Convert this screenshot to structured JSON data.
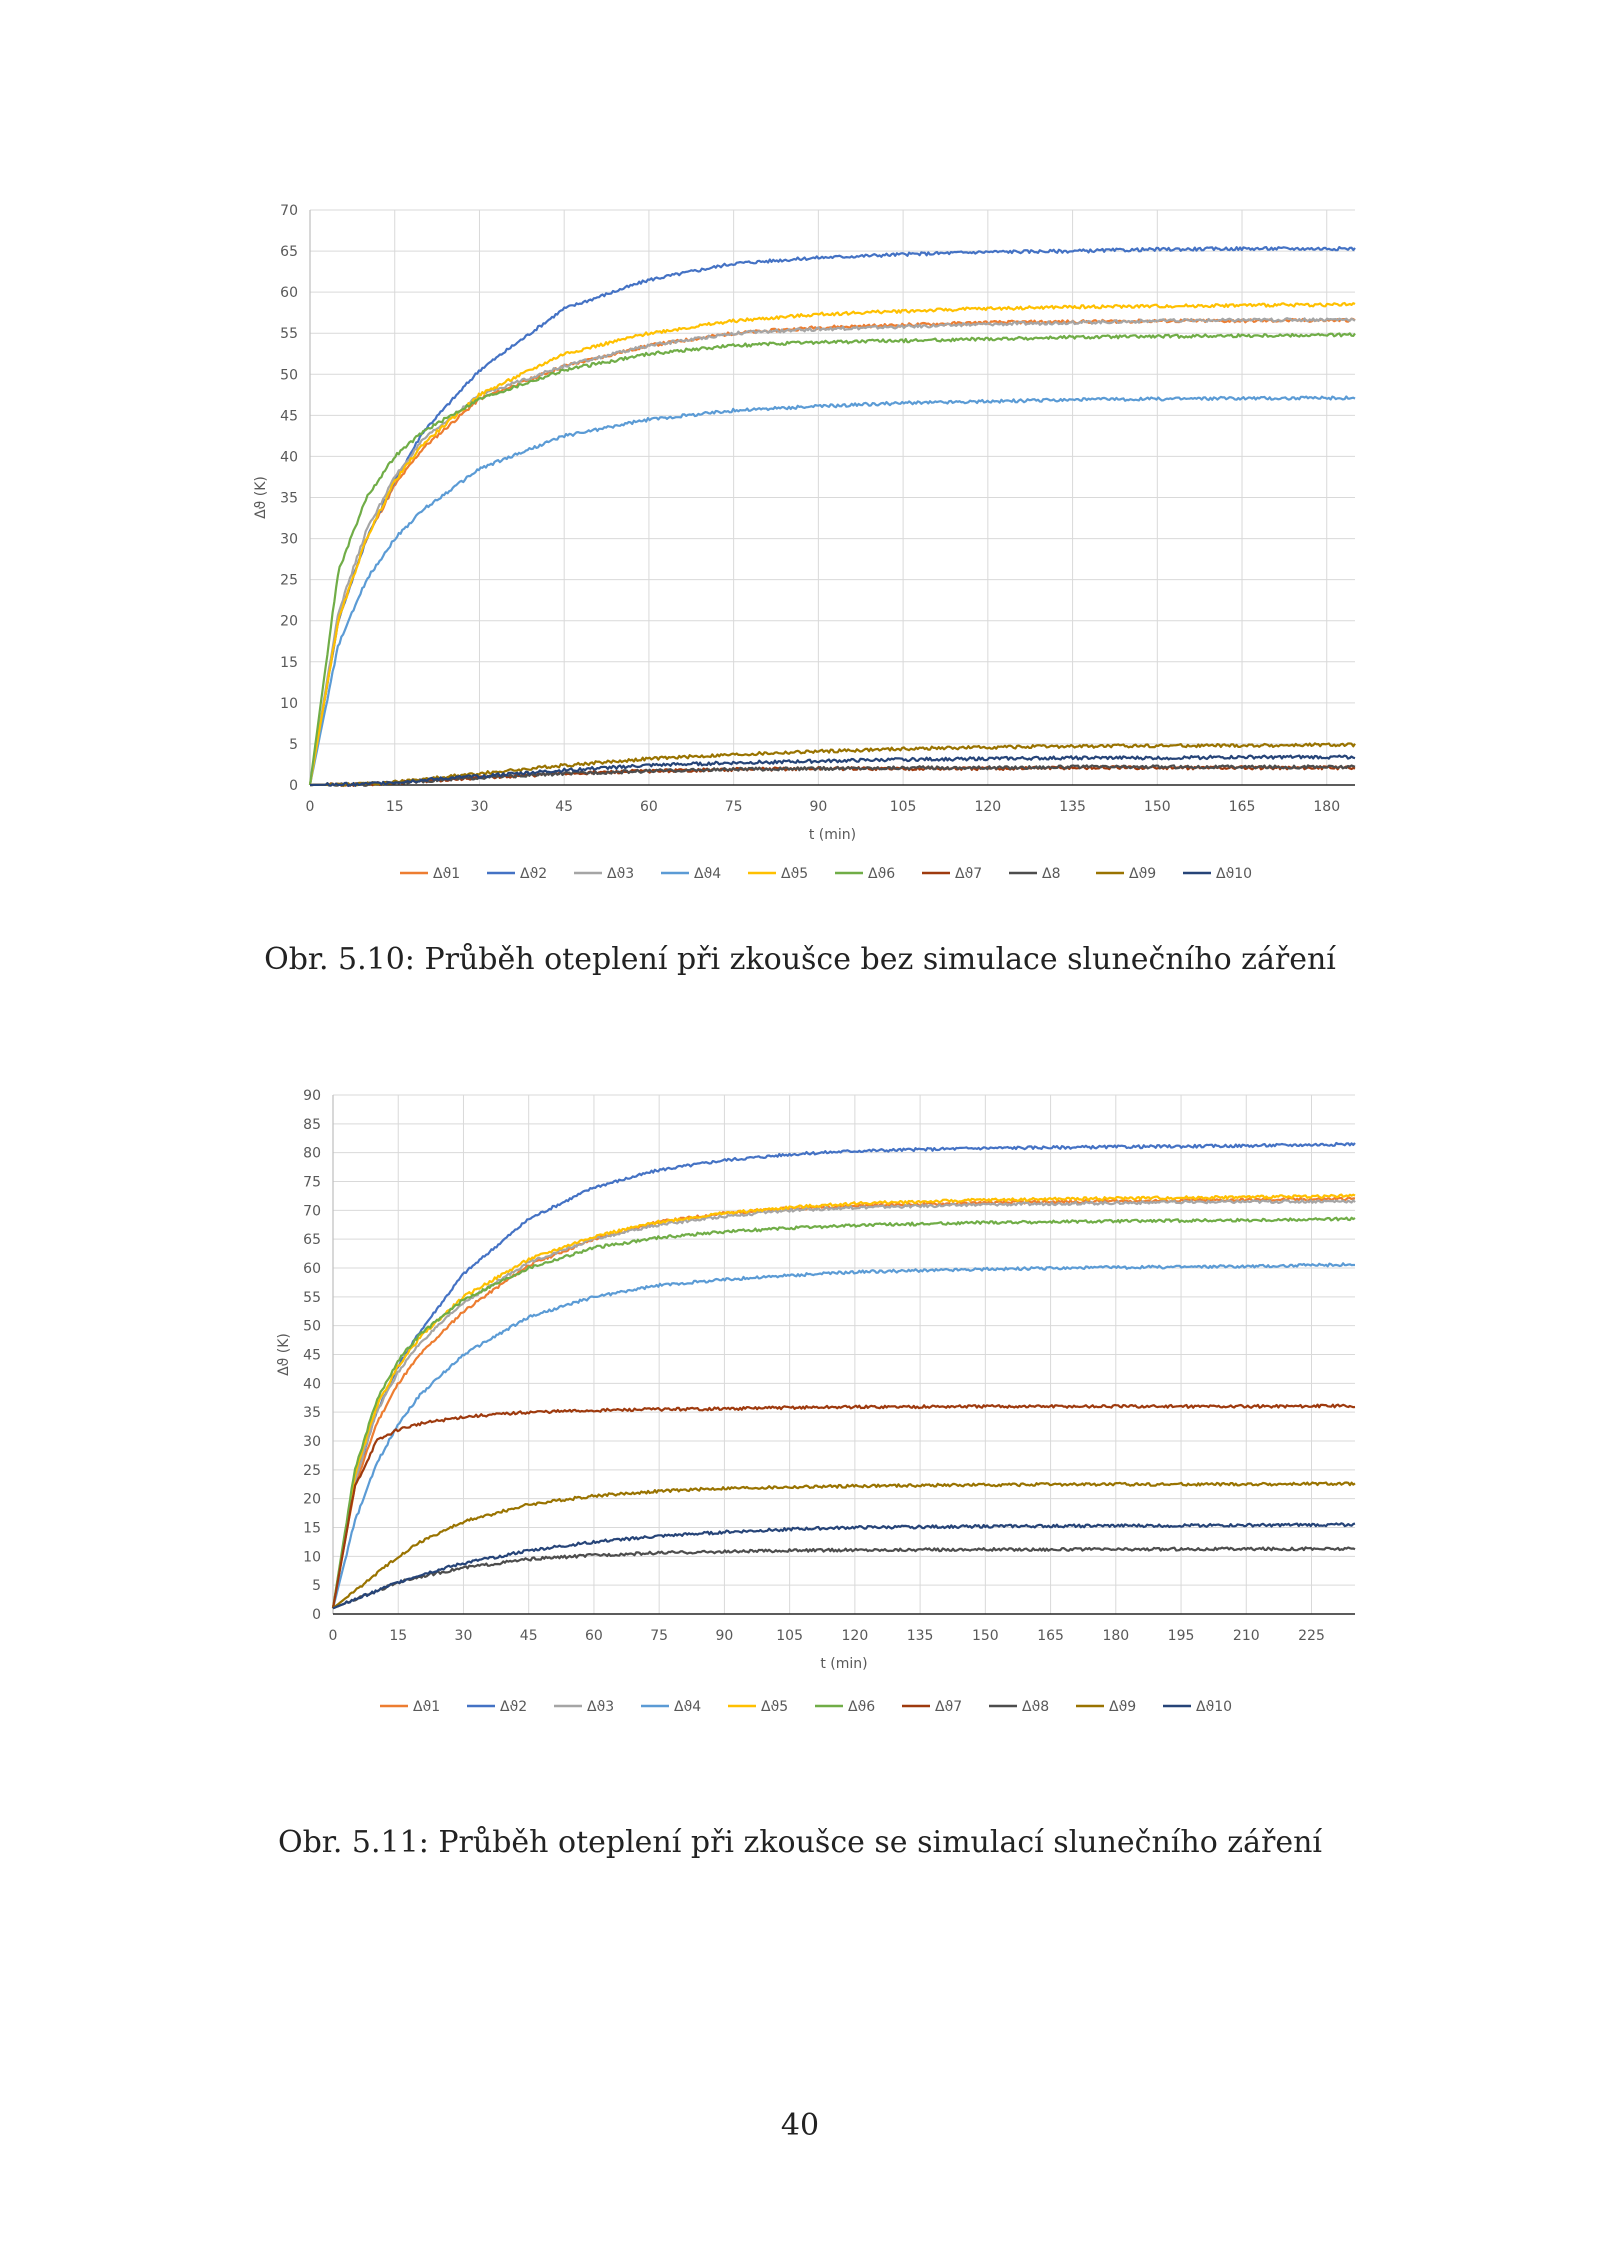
{
  "page_number": "40",
  "figures": [
    {
      "caption": "Obr. 5.10: Průběh oteplení při zkoušce bez simulace slunečního záření",
      "xlabel": "t (min)",
      "ylabel": "Δϑ (K)"
    },
    {
      "caption": "Obr. 5.11: Průběh oteplení při zkoušce se simulací slunečního záření",
      "xlabel": "t (min)",
      "ylabel": "Δϑ (K)"
    }
  ],
  "chart_data": [
    {
      "type": "line",
      "title": "",
      "xlabel": "t (min)",
      "ylabel": "Δϑ (K)",
      "xlim": [
        0,
        185
      ],
      "ylim": [
        0,
        70
      ],
      "xticks": [
        0,
        15,
        30,
        45,
        60,
        75,
        90,
        105,
        120,
        135,
        150,
        165,
        180
      ],
      "yticks": [
        0,
        5,
        10,
        15,
        20,
        25,
        30,
        35,
        40,
        45,
        50,
        55,
        60,
        65,
        70
      ],
      "grid": true,
      "legend_position": "bottom",
      "x": [
        0,
        5,
        10,
        15,
        20,
        30,
        45,
        60,
        75,
        90,
        105,
        120,
        135,
        150,
        165,
        185
      ],
      "series": [
        {
          "name": "Δϑ1",
          "color": "#ed7d31",
          "values": [
            0,
            20,
            30,
            36.5,
            41,
            47,
            51,
            53.5,
            55,
            55.7,
            56,
            56.3,
            56.4,
            56.5,
            56.5,
            56.6
          ]
        },
        {
          "name": "Δϑ2",
          "color": "#4472c4",
          "values": [
            0,
            20,
            30,
            37,
            43,
            50.5,
            58,
            61.5,
            63.5,
            64.2,
            64.6,
            64.9,
            65.0,
            65.2,
            65.3,
            65.3
          ]
        },
        {
          "name": "Δϑ3",
          "color": "#a5a5a5",
          "values": [
            0,
            21,
            31,
            37.5,
            42,
            47.5,
            51,
            53.5,
            55,
            55.5,
            55.8,
            56.1,
            56.3,
            56.5,
            56.6,
            56.7
          ]
        },
        {
          "name": "Δϑ4",
          "color": "#5b9bd5",
          "values": [
            0,
            17,
            25,
            30,
            33.5,
            38.5,
            42.5,
            44.5,
            45.6,
            46.1,
            46.5,
            46.7,
            46.9,
            47.0,
            47.1,
            47.1
          ]
        },
        {
          "name": "Δϑ5",
          "color": "#ffc000",
          "values": [
            0,
            20,
            30,
            37,
            41.5,
            47.5,
            52.5,
            55,
            56.5,
            57.3,
            57.7,
            58.0,
            58.2,
            58.3,
            58.4,
            58.5
          ]
        },
        {
          "name": "Δϑ6",
          "color": "#70ad47",
          "values": [
            0,
            26,
            35,
            40,
            43,
            47,
            50.5,
            52.5,
            53.5,
            53.9,
            54.1,
            54.3,
            54.5,
            54.6,
            54.7,
            54.8
          ]
        },
        {
          "name": "Δϑ7",
          "color": "#9e3a0e",
          "values": [
            0,
            0.05,
            0.1,
            0.3,
            0.5,
            0.9,
            1.4,
            1.7,
            1.9,
            2.0,
            2.0,
            2.0,
            2.1,
            2.1,
            2.1,
            2.1
          ]
        },
        {
          "name": "Δ8",
          "color": "#4d4d4d",
          "values": [
            0,
            0.05,
            0.1,
            0.3,
            0.5,
            0.9,
            1.4,
            1.7,
            1.9,
            2.0,
            2.1,
            2.1,
            2.2,
            2.2,
            2.2,
            2.2
          ]
        },
        {
          "name": "Δϑ9",
          "color": "#997300",
          "values": [
            0,
            0.05,
            0.15,
            0.4,
            0.7,
            1.4,
            2.4,
            3.2,
            3.7,
            4.1,
            4.4,
            4.6,
            4.7,
            4.8,
            4.8,
            4.9
          ]
        },
        {
          "name": "Δϑ10",
          "color": "#264478",
          "values": [
            0,
            0.05,
            0.12,
            0.35,
            0.6,
            1.1,
            1.8,
            2.4,
            2.7,
            2.9,
            3.1,
            3.2,
            3.3,
            3.3,
            3.4,
            3.4
          ]
        }
      ]
    },
    {
      "type": "line",
      "title": "",
      "xlabel": "t (min)",
      "ylabel": "Δϑ (K)",
      "xlim": [
        0,
        235
      ],
      "ylim": [
        0,
        90
      ],
      "xticks": [
        0,
        15,
        30,
        45,
        60,
        75,
        90,
        105,
        120,
        135,
        150,
        165,
        180,
        195,
        210,
        225
      ],
      "yticks": [
        0,
        5,
        10,
        15,
        20,
        25,
        30,
        35,
        40,
        45,
        50,
        55,
        60,
        65,
        70,
        75,
        80,
        85,
        90
      ],
      "grid": true,
      "legend_position": "bottom",
      "x": [
        0,
        5,
        10,
        15,
        20,
        30,
        45,
        60,
        75,
        90,
        105,
        120,
        150,
        180,
        210,
        235
      ],
      "series": [
        {
          "name": "Δϑ1",
          "color": "#ed7d31",
          "values": [
            1,
            22,
            33,
            40,
            45,
            52.5,
            60.5,
            65,
            68,
            69.5,
            70.3,
            70.8,
            71.3,
            71.6,
            71.8,
            72
          ]
        },
        {
          "name": "Δϑ2",
          "color": "#4472c4",
          "values": [
            1,
            23,
            35,
            43,
            49,
            59,
            68.5,
            74,
            77,
            78.7,
            79.7,
            80.3,
            80.8,
            81.0,
            81.2,
            81.5
          ]
        },
        {
          "name": "Δϑ3",
          "color": "#a5a5a5",
          "values": [
            1,
            23,
            35,
            42,
            47,
            54,
            61,
            65,
            67.5,
            69,
            70,
            70.5,
            71,
            71.3,
            71.5,
            71.6
          ]
        },
        {
          "name": "Δϑ4",
          "color": "#5b9bd5",
          "values": [
            1,
            16,
            26,
            33,
            38,
            45,
            51.5,
            55,
            57,
            58,
            58.7,
            59.3,
            59.8,
            60.1,
            60.3,
            60.6
          ]
        },
        {
          "name": "Δϑ5",
          "color": "#ffc000",
          "values": [
            1,
            24,
            36,
            43,
            48,
            55,
            61.5,
            65.5,
            68,
            69.5,
            70.5,
            71.2,
            71.8,
            72.1,
            72.3,
            72.5
          ]
        },
        {
          "name": "Δϑ6",
          "color": "#70ad47",
          "values": [
            1,
            25,
            37,
            44,
            48.5,
            54.5,
            60,
            63.5,
            65.3,
            66.3,
            66.9,
            67.4,
            67.9,
            68.1,
            68.3,
            68.5
          ]
        },
        {
          "name": "Δϑ7",
          "color": "#9e3a0e",
          "values": [
            1,
            22,
            30,
            32,
            33,
            34.2,
            35,
            35.3,
            35.5,
            35.6,
            35.8,
            35.9,
            36,
            36,
            36,
            36.1
          ]
        },
        {
          "name": "Δϑ8",
          "color": "#4d4d4d",
          "values": [
            1,
            2.5,
            4,
            5.5,
            6.5,
            8,
            9.5,
            10.2,
            10.6,
            10.8,
            11,
            11.1,
            11.2,
            11.2,
            11.3,
            11.3
          ]
        },
        {
          "name": "Δϑ9",
          "color": "#997300",
          "values": [
            1,
            4,
            7,
            10,
            12.5,
            16,
            19,
            20.5,
            21.3,
            21.8,
            22,
            22.2,
            22.4,
            22.5,
            22.5,
            22.6
          ]
        },
        {
          "name": "Δϑ10",
          "color": "#264478",
          "values": [
            1,
            2.5,
            4,
            5.5,
            6.8,
            8.8,
            11,
            12.5,
            13.5,
            14.2,
            14.7,
            15,
            15.2,
            15.3,
            15.4,
            15.5
          ]
        }
      ]
    }
  ]
}
